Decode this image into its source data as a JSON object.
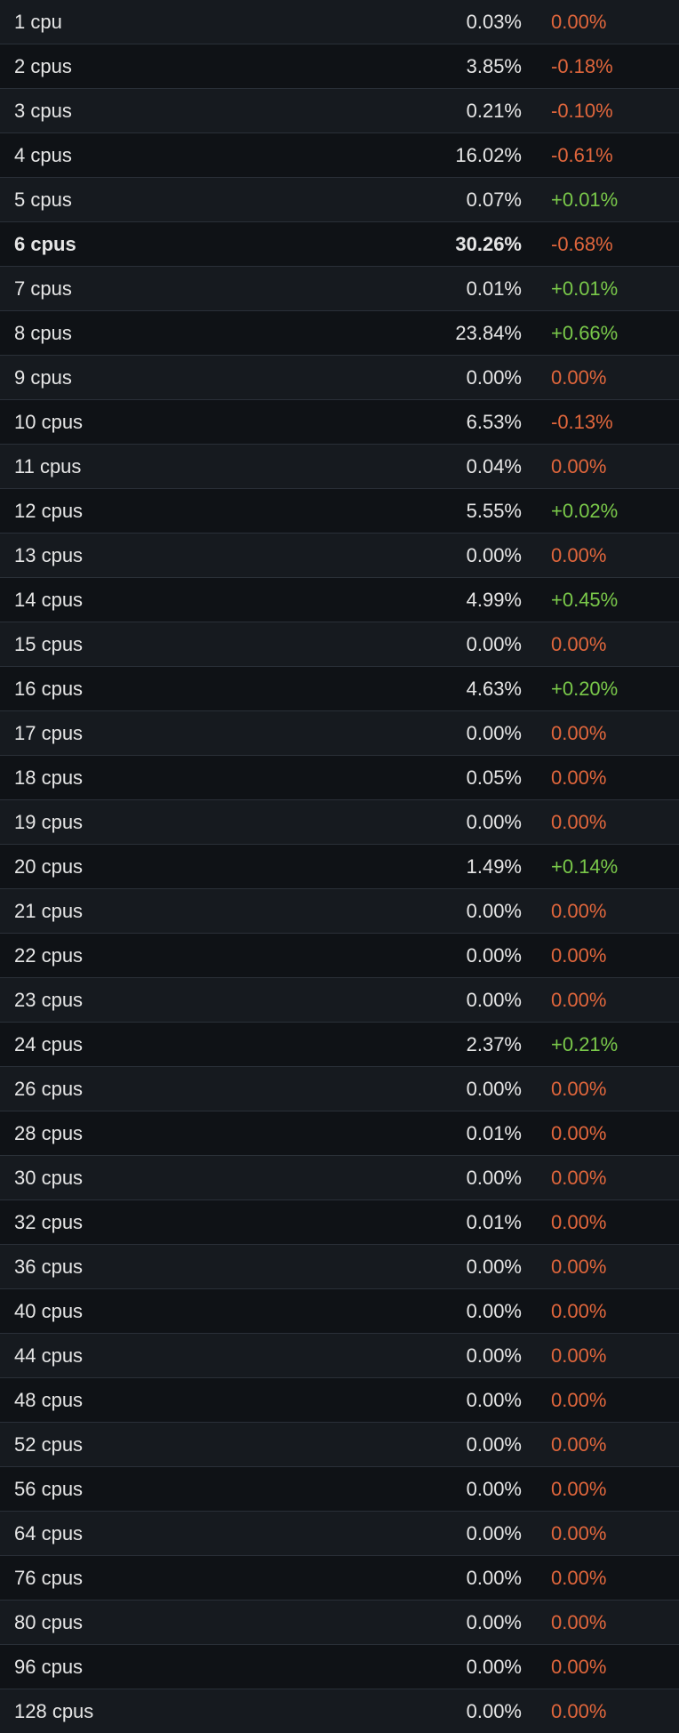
{
  "colors": {
    "negative_or_zero": "#e0663c",
    "positive": "#7ac94a",
    "text": "#e6e6e6",
    "background": "#0d1014"
  },
  "rows": [
    {
      "label": "1 cpu",
      "pct": "0.03%",
      "delta": "0.00%",
      "trend": "neg"
    },
    {
      "label": "2 cpus",
      "pct": "3.85%",
      "delta": "-0.18%",
      "trend": "neg"
    },
    {
      "label": "3 cpus",
      "pct": "0.21%",
      "delta": "-0.10%",
      "trend": "neg"
    },
    {
      "label": "4 cpus",
      "pct": "16.02%",
      "delta": "-0.61%",
      "trend": "neg"
    },
    {
      "label": "5 cpus",
      "pct": "0.07%",
      "delta": "+0.01%",
      "trend": "pos"
    },
    {
      "label": "6 cpus",
      "pct": "30.26%",
      "delta": "-0.68%",
      "trend": "neg",
      "bold": true
    },
    {
      "label": "7 cpus",
      "pct": "0.01%",
      "delta": "+0.01%",
      "trend": "pos"
    },
    {
      "label": "8 cpus",
      "pct": "23.84%",
      "delta": "+0.66%",
      "trend": "pos"
    },
    {
      "label": "9 cpus",
      "pct": "0.00%",
      "delta": "0.00%",
      "trend": "neg"
    },
    {
      "label": "10 cpus",
      "pct": "6.53%",
      "delta": "-0.13%",
      "trend": "neg"
    },
    {
      "label": "11 cpus",
      "pct": "0.04%",
      "delta": "0.00%",
      "trend": "neg"
    },
    {
      "label": "12 cpus",
      "pct": "5.55%",
      "delta": "+0.02%",
      "trend": "pos"
    },
    {
      "label": "13 cpus",
      "pct": "0.00%",
      "delta": "0.00%",
      "trend": "neg"
    },
    {
      "label": "14 cpus",
      "pct": "4.99%",
      "delta": "+0.45%",
      "trend": "pos"
    },
    {
      "label": "15 cpus",
      "pct": "0.00%",
      "delta": "0.00%",
      "trend": "neg"
    },
    {
      "label": "16 cpus",
      "pct": "4.63%",
      "delta": "+0.20%",
      "trend": "pos"
    },
    {
      "label": "17 cpus",
      "pct": "0.00%",
      "delta": "0.00%",
      "trend": "neg"
    },
    {
      "label": "18 cpus",
      "pct": "0.05%",
      "delta": "0.00%",
      "trend": "neg"
    },
    {
      "label": "19 cpus",
      "pct": "0.00%",
      "delta": "0.00%",
      "trend": "neg"
    },
    {
      "label": "20 cpus",
      "pct": "1.49%",
      "delta": "+0.14%",
      "trend": "pos"
    },
    {
      "label": "21 cpus",
      "pct": "0.00%",
      "delta": "0.00%",
      "trend": "neg"
    },
    {
      "label": "22 cpus",
      "pct": "0.00%",
      "delta": "0.00%",
      "trend": "neg"
    },
    {
      "label": "23 cpus",
      "pct": "0.00%",
      "delta": "0.00%",
      "trend": "neg"
    },
    {
      "label": "24 cpus",
      "pct": "2.37%",
      "delta": "+0.21%",
      "trend": "pos"
    },
    {
      "label": "26 cpus",
      "pct": "0.00%",
      "delta": "0.00%",
      "trend": "neg"
    },
    {
      "label": "28 cpus",
      "pct": "0.01%",
      "delta": "0.00%",
      "trend": "neg"
    },
    {
      "label": "30 cpus",
      "pct": "0.00%",
      "delta": "0.00%",
      "trend": "neg"
    },
    {
      "label": "32 cpus",
      "pct": "0.01%",
      "delta": "0.00%",
      "trend": "neg"
    },
    {
      "label": "36 cpus",
      "pct": "0.00%",
      "delta": "0.00%",
      "trend": "neg"
    },
    {
      "label": "40 cpus",
      "pct": "0.00%",
      "delta": "0.00%",
      "trend": "neg"
    },
    {
      "label": "44 cpus",
      "pct": "0.00%",
      "delta": "0.00%",
      "trend": "neg"
    },
    {
      "label": "48 cpus",
      "pct": "0.00%",
      "delta": "0.00%",
      "trend": "neg"
    },
    {
      "label": "52 cpus",
      "pct": "0.00%",
      "delta": "0.00%",
      "trend": "neg"
    },
    {
      "label": "56 cpus",
      "pct": "0.00%",
      "delta": "0.00%",
      "trend": "neg"
    },
    {
      "label": "64 cpus",
      "pct": "0.00%",
      "delta": "0.00%",
      "trend": "neg"
    },
    {
      "label": "76 cpus",
      "pct": "0.00%",
      "delta": "0.00%",
      "trend": "neg"
    },
    {
      "label": "80 cpus",
      "pct": "0.00%",
      "delta": "0.00%",
      "trend": "neg"
    },
    {
      "label": "96 cpus",
      "pct": "0.00%",
      "delta": "0.00%",
      "trend": "neg"
    },
    {
      "label": "128 cpus",
      "pct": "0.00%",
      "delta": "0.00%",
      "trend": "neg"
    }
  ]
}
